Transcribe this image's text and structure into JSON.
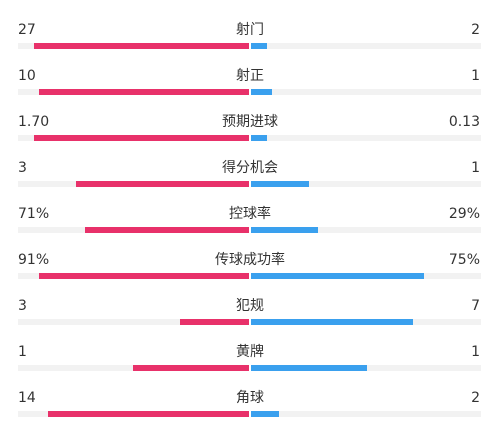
{
  "colors": {
    "home": "#e8316a",
    "away": "#3aa0ee",
    "track": "#f2f2f2"
  },
  "stats": [
    {
      "label": "射门",
      "home": "27",
      "away": "2",
      "home_share": 0.93,
      "away_share": 0.07
    },
    {
      "label": "射正",
      "home": "10",
      "away": "1",
      "home_share": 0.91,
      "away_share": 0.09
    },
    {
      "label": "预期进球",
      "home": "1.70",
      "away": "0.13",
      "home_share": 0.93,
      "away_share": 0.07
    },
    {
      "label": "得分机会",
      "home": "3",
      "away": "1",
      "home_share": 0.75,
      "away_share": 0.25
    },
    {
      "label": "控球率",
      "home": "71%",
      "away": "29%",
      "home_share": 0.71,
      "away_share": 0.29
    },
    {
      "label": "传球成功率",
      "home": "91%",
      "away": "75%",
      "home_share": 0.91,
      "away_share": 0.75
    },
    {
      "label": "犯规",
      "home": "3",
      "away": "7",
      "home_share": 0.3,
      "away_share": 0.7
    },
    {
      "label": "黄牌",
      "home": "1",
      "away": "1",
      "home_share": 0.5,
      "away_share": 0.5
    },
    {
      "label": "角球",
      "home": "14",
      "away": "2",
      "home_share": 0.87,
      "away_share": 0.12
    }
  ]
}
